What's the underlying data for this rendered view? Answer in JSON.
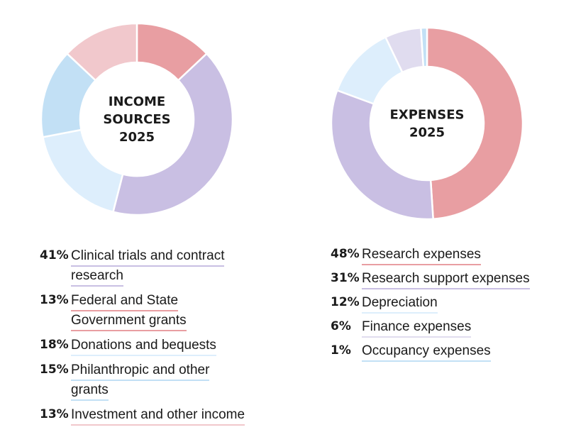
{
  "chart_data": [
    {
      "type": "pie",
      "title": [
        "INCOME",
        "SOURCES",
        "2025"
      ],
      "slices": [
        {
          "percent": "13%",
          "label": [
            "Federal and State",
            "Government grants"
          ],
          "value": 13,
          "color": "#e89ea2"
        },
        {
          "percent": "41%",
          "label": [
            "Clinical trials and contract",
            "research"
          ],
          "value": 41,
          "color": "#c9bfe3"
        },
        {
          "percent": "18%",
          "label": [
            "Donations and bequests"
          ],
          "value": 18,
          "color": "#ddeefc"
        },
        {
          "percent": "15%",
          "label": [
            "Philanthropic and other",
            "grants"
          ],
          "value": 15,
          "color": "#c2e0f5"
        },
        {
          "percent": "13%",
          "label": [
            "Investment and other income"
          ],
          "value": 13,
          "color": "#f1c8cc"
        }
      ],
      "legend_order": [
        1,
        0,
        2,
        3,
        4
      ]
    },
    {
      "type": "pie",
      "title": [
        "EXPENSES",
        "2025"
      ],
      "slices": [
        {
          "percent": "48%",
          "label": [
            "Research expenses"
          ],
          "value": 48,
          "color": "#e89ea2"
        },
        {
          "percent": "31%",
          "label": [
            "Research support expenses"
          ],
          "value": 31,
          "color": "#c9bfe3"
        },
        {
          "percent": "12%",
          "label": [
            "Depreciation"
          ],
          "value": 12,
          "color": "#ddeefc"
        },
        {
          "percent": "6%",
          "label": [
            "Finance expenses"
          ],
          "value": 6,
          "color": "#e0dcef"
        },
        {
          "percent": "1%",
          "label": [
            "Occupancy expenses"
          ],
          "value": 1,
          "color": "#c2e0f5"
        }
      ],
      "legend_order": [
        0,
        1,
        2,
        3,
        4
      ]
    }
  ]
}
